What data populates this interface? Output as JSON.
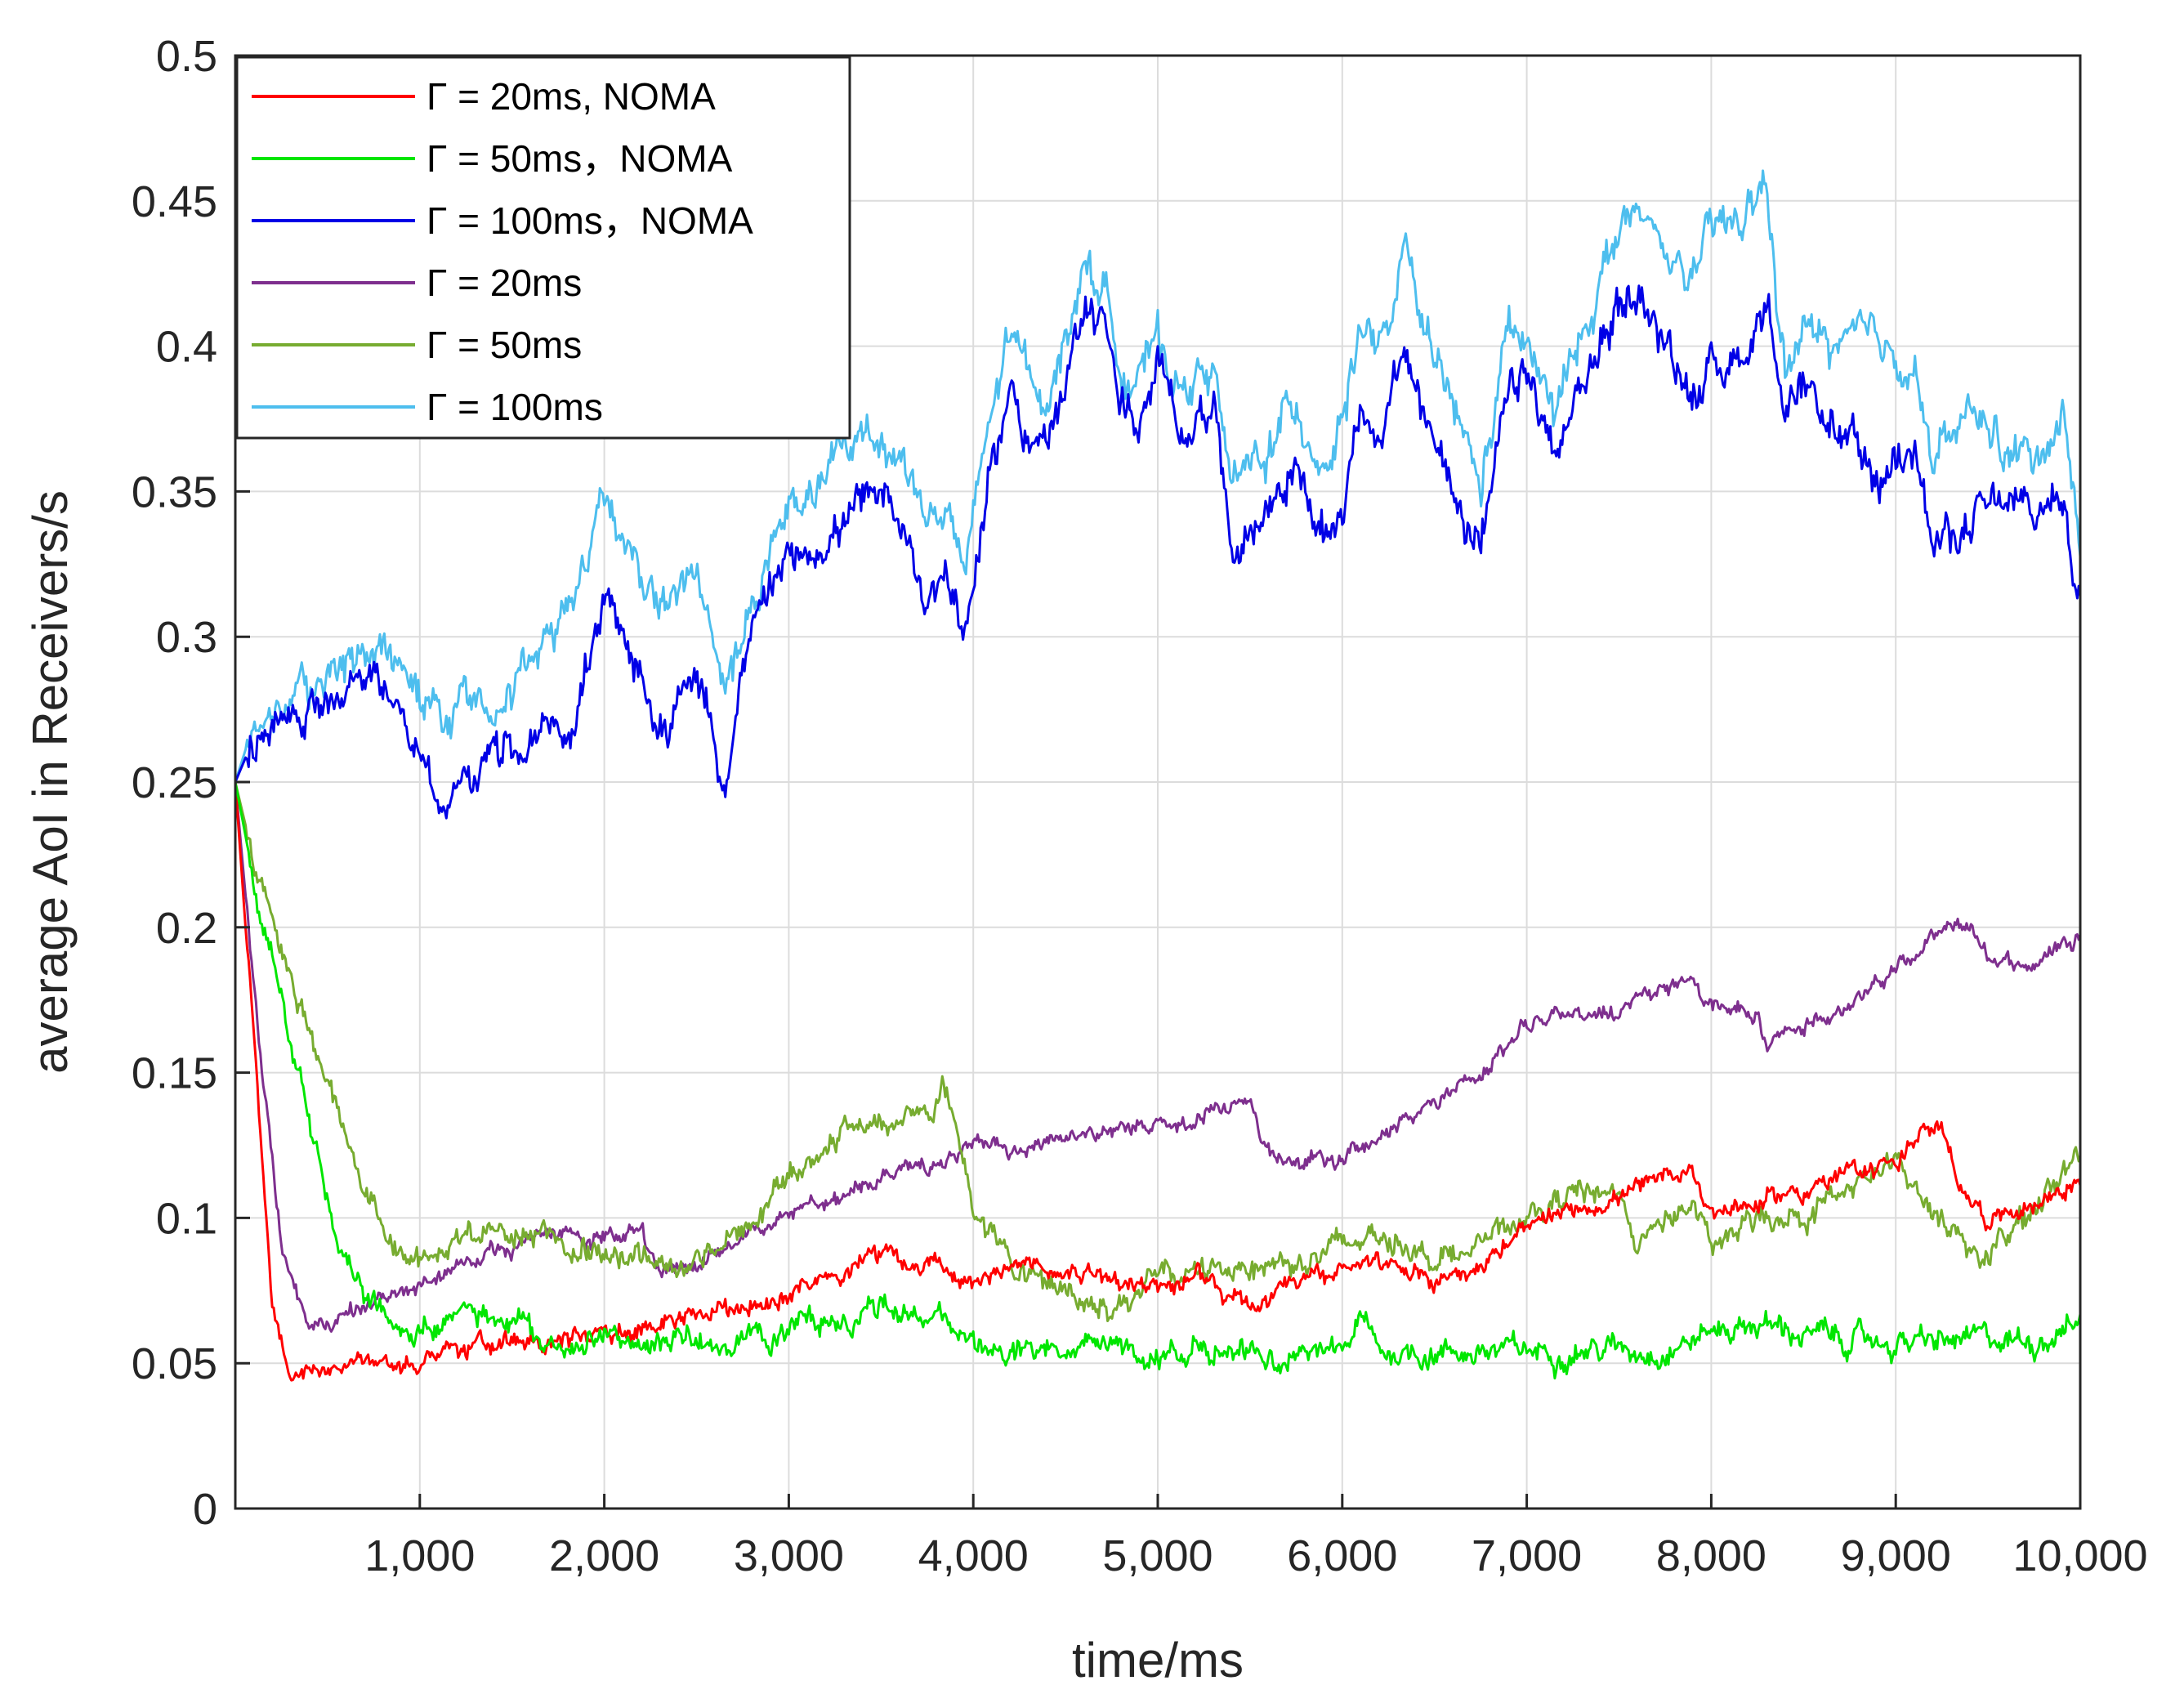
{
  "chart_data": {
    "type": "line",
    "title": "",
    "xlabel": "time/ms",
    "ylabel": "average AoI in Receivers/s",
    "xlim": [
      0,
      10000
    ],
    "ylim": [
      0,
      0.5
    ],
    "xticks": [
      1000,
      2000,
      3000,
      4000,
      5000,
      6000,
      7000,
      8000,
      9000,
      10000
    ],
    "xtick_labels": [
      "1,000",
      "2,000",
      "3,000",
      "4,000",
      "5,000",
      "6,000",
      "7,000",
      "8,000",
      "9,000",
      "10,000"
    ],
    "yticks": [
      0,
      0.05,
      0.1,
      0.15,
      0.2,
      0.25,
      0.3,
      0.35,
      0.4,
      0.45,
      0.5
    ],
    "ytick_labels": [
      "0",
      "0.05",
      "0.1",
      "0.15",
      "0.2",
      "0.25",
      "0.3",
      "0.35",
      "0.4",
      "0.45",
      "0.5"
    ],
    "grid": true,
    "legend_position": "top-left",
    "series": [
      {
        "name": "Γ = 20ms, NOMA",
        "color": "#ff0000",
        "x": [
          0,
          100,
          200,
          300,
          500,
          750,
          1000,
          1250,
          1500,
          1750,
          2000,
          2250,
          2500,
          2750,
          3000,
          3250,
          3500,
          3750,
          4000,
          4250,
          4500,
          4750,
          5000,
          5250,
          5500,
          5750,
          6000,
          6250,
          6500,
          6750,
          7000,
          7250,
          7500,
          7750,
          7900,
          8000,
          8250,
          8500,
          8750,
          9000,
          9150,
          9250,
          9350,
          9500,
          9750,
          10000
        ],
        "y": [
          0.25,
          0.16,
          0.07,
          0.045,
          0.047,
          0.049,
          0.05,
          0.055,
          0.057,
          0.058,
          0.06,
          0.063,
          0.066,
          0.07,
          0.074,
          0.08,
          0.087,
          0.085,
          0.081,
          0.083,
          0.083,
          0.08,
          0.077,
          0.079,
          0.072,
          0.078,
          0.081,
          0.083,
          0.078,
          0.085,
          0.095,
          0.102,
          0.108,
          0.112,
          0.117,
          0.103,
          0.105,
          0.11,
          0.115,
          0.12,
          0.13,
          0.128,
          0.112,
          0.1,
          0.105,
          0.113
        ]
      },
      {
        "name": "Γ = 50ms，NOMA",
        "color": "#00e600",
        "x": [
          0,
          150,
          300,
          500,
          600,
          700,
          850,
          1000,
          1250,
          1500,
          1750,
          2000,
          2250,
          2500,
          2750,
          3000,
          3250,
          3500,
          3750,
          4000,
          4250,
          4500,
          4750,
          5000,
          5250,
          5500,
          5750,
          6000,
          6100,
          6200,
          6500,
          6750,
          7000,
          7250,
          7500,
          7750,
          8000,
          8250,
          8500,
          8750,
          9000,
          9250,
          9500,
          9750,
          10000
        ],
        "y": [
          0.25,
          0.2,
          0.16,
          0.11,
          0.085,
          0.07,
          0.065,
          0.062,
          0.066,
          0.063,
          0.057,
          0.058,
          0.055,
          0.056,
          0.059,
          0.062,
          0.066,
          0.068,
          0.067,
          0.058,
          0.054,
          0.053,
          0.054,
          0.052,
          0.055,
          0.055,
          0.053,
          0.053,
          0.065,
          0.054,
          0.054,
          0.054,
          0.054,
          0.055,
          0.055,
          0.055,
          0.061,
          0.064,
          0.06,
          0.058,
          0.057,
          0.057,
          0.058,
          0.058,
          0.065
        ]
      },
      {
        "name": "Γ = 100ms，NOMA",
        "color": "#0000e6",
        "x": [
          0,
          100,
          250,
          500,
          600,
          750,
          900,
          1000,
          1150,
          1250,
          1400,
          1500,
          1600,
          1700,
          1800,
          1900,
          2000,
          2150,
          2300,
          2500,
          2650,
          2800,
          3000,
          3200,
          3400,
          3600,
          3750,
          3850,
          3950,
          4050,
          4200,
          4350,
          4500,
          4600,
          4700,
          4800,
          4900,
          5000,
          5150,
          5300,
          5400,
          5600,
          5750,
          5900,
          6000,
          6100,
          6200,
          6350,
          6500,
          6600,
          6750,
          6900,
          7000,
          7150,
          7300,
          7400,
          7500,
          7600,
          7750,
          7900,
          8050,
          8200,
          8300,
          8400,
          8500,
          8700,
          8900,
          9100,
          9200,
          9300,
          9450,
          9600,
          9750,
          9900,
          10000
        ],
        "y": [
          0.25,
          0.265,
          0.27,
          0.278,
          0.28,
          0.283,
          0.275,
          0.262,
          0.24,
          0.252,
          0.258,
          0.26,
          0.265,
          0.27,
          0.263,
          0.29,
          0.31,
          0.29,
          0.27,
          0.285,
          0.25,
          0.3,
          0.325,
          0.335,
          0.345,
          0.34,
          0.315,
          0.325,
          0.3,
          0.34,
          0.385,
          0.365,
          0.38,
          0.415,
          0.41,
          0.385,
          0.37,
          0.39,
          0.37,
          0.385,
          0.33,
          0.345,
          0.36,
          0.33,
          0.345,
          0.38,
          0.37,
          0.395,
          0.365,
          0.355,
          0.33,
          0.38,
          0.39,
          0.36,
          0.385,
          0.4,
          0.415,
          0.42,
          0.4,
          0.385,
          0.395,
          0.4,
          0.42,
          0.37,
          0.38,
          0.37,
          0.35,
          0.375,
          0.33,
          0.335,
          0.34,
          0.345,
          0.34,
          0.35,
          0.315
        ]
      },
      {
        "name": "Γ = 20ms",
        "color": "#7e2f8e",
        "x": [
          0,
          100,
          250,
          400,
          500,
          750,
          1000,
          1250,
          1500,
          1750,
          2000,
          2200,
          2300,
          2500,
          2750,
          3000,
          3250,
          3500,
          3750,
          4000,
          4250,
          4500,
          4750,
          5000,
          5250,
          5500,
          5550,
          5800,
          6000,
          6250,
          6500,
          6750,
          7000,
          7250,
          7500,
          7750,
          7900,
          8000,
          8250,
          8300,
          8500,
          8750,
          9000,
          9250,
          9400,
          9500,
          9750,
          10000
        ],
        "y": [
          0.25,
          0.18,
          0.09,
          0.062,
          0.065,
          0.07,
          0.078,
          0.085,
          0.09,
          0.095,
          0.093,
          0.095,
          0.08,
          0.085,
          0.093,
          0.1,
          0.105,
          0.113,
          0.12,
          0.125,
          0.125,
          0.128,
          0.13,
          0.133,
          0.135,
          0.14,
          0.125,
          0.12,
          0.12,
          0.13,
          0.14,
          0.15,
          0.165,
          0.17,
          0.17,
          0.18,
          0.182,
          0.175,
          0.17,
          0.16,
          0.165,
          0.175,
          0.185,
          0.198,
          0.2,
          0.19,
          0.187,
          0.2
        ]
      },
      {
        "name": "Γ = 50ms",
        "color": "#77ac30",
        "x": [
          0,
          150,
          300,
          450,
          600,
          700,
          800,
          900,
          1000,
          1200,
          1400,
          1600,
          1800,
          2000,
          2200,
          2400,
          2600,
          2800,
          3000,
          3200,
          3400,
          3600,
          3800,
          3850,
          3950,
          4000,
          4250,
          4500,
          4750,
          5000,
          5250,
          5500,
          5750,
          6000,
          6250,
          6500,
          6750,
          7000,
          7250,
          7500,
          7600,
          7750,
          7900,
          8000,
          8250,
          8500,
          8750,
          9000,
          9250,
          9500,
          9750,
          10000
        ],
        "y": [
          0.25,
          0.21,
          0.185,
          0.155,
          0.13,
          0.11,
          0.1,
          0.09,
          0.083,
          0.093,
          0.098,
          0.095,
          0.092,
          0.09,
          0.085,
          0.082,
          0.09,
          0.1,
          0.11,
          0.125,
          0.132,
          0.135,
          0.14,
          0.145,
          0.12,
          0.105,
          0.08,
          0.075,
          0.07,
          0.078,
          0.082,
          0.085,
          0.085,
          0.09,
          0.095,
          0.087,
          0.09,
          0.1,
          0.108,
          0.11,
          0.09,
          0.1,
          0.105,
          0.088,
          0.1,
          0.102,
          0.11,
          0.118,
          0.1,
          0.085,
          0.105,
          0.12
        ]
      },
      {
        "name": "Γ = 100ms",
        "color": "#4dbeee",
        "x": [
          0,
          100,
          250,
          500,
          600,
          750,
          900,
          1000,
          1150,
          1250,
          1400,
          1500,
          1600,
          1700,
          1800,
          1900,
          2000,
          2150,
          2300,
          2500,
          2650,
          2800,
          3000,
          3200,
          3400,
          3600,
          3750,
          3850,
          3950,
          4050,
          4200,
          4350,
          4500,
          4600,
          4700,
          4800,
          4900,
          5000,
          5150,
          5300,
          5400,
          5600,
          5750,
          5900,
          6000,
          6100,
          6200,
          6350,
          6500,
          6600,
          6750,
          6900,
          7000,
          7150,
          7300,
          7400,
          7500,
          7600,
          7750,
          7900,
          8050,
          8200,
          8300,
          8400,
          8500,
          8700,
          8900,
          9100,
          9200,
          9300,
          9450,
          9600,
          9750,
          9900,
          10000
        ],
        "y": [
          0.25,
          0.27,
          0.275,
          0.285,
          0.29,
          0.293,
          0.29,
          0.285,
          0.27,
          0.28,
          0.283,
          0.285,
          0.29,
          0.295,
          0.31,
          0.33,
          0.35,
          0.33,
          0.31,
          0.32,
          0.28,
          0.31,
          0.34,
          0.355,
          0.37,
          0.365,
          0.34,
          0.345,
          0.32,
          0.36,
          0.405,
          0.38,
          0.4,
          0.43,
          0.42,
          0.395,
          0.39,
          0.4,
          0.385,
          0.395,
          0.35,
          0.365,
          0.38,
          0.36,
          0.375,
          0.41,
          0.395,
          0.43,
          0.39,
          0.38,
          0.35,
          0.405,
          0.4,
          0.375,
          0.405,
          0.425,
          0.44,
          0.445,
          0.43,
          0.425,
          0.44,
          0.445,
          0.455,
          0.39,
          0.405,
          0.4,
          0.4,
          0.395,
          0.36,
          0.37,
          0.375,
          0.365,
          0.36,
          0.38,
          0.33
        ]
      }
    ]
  }
}
